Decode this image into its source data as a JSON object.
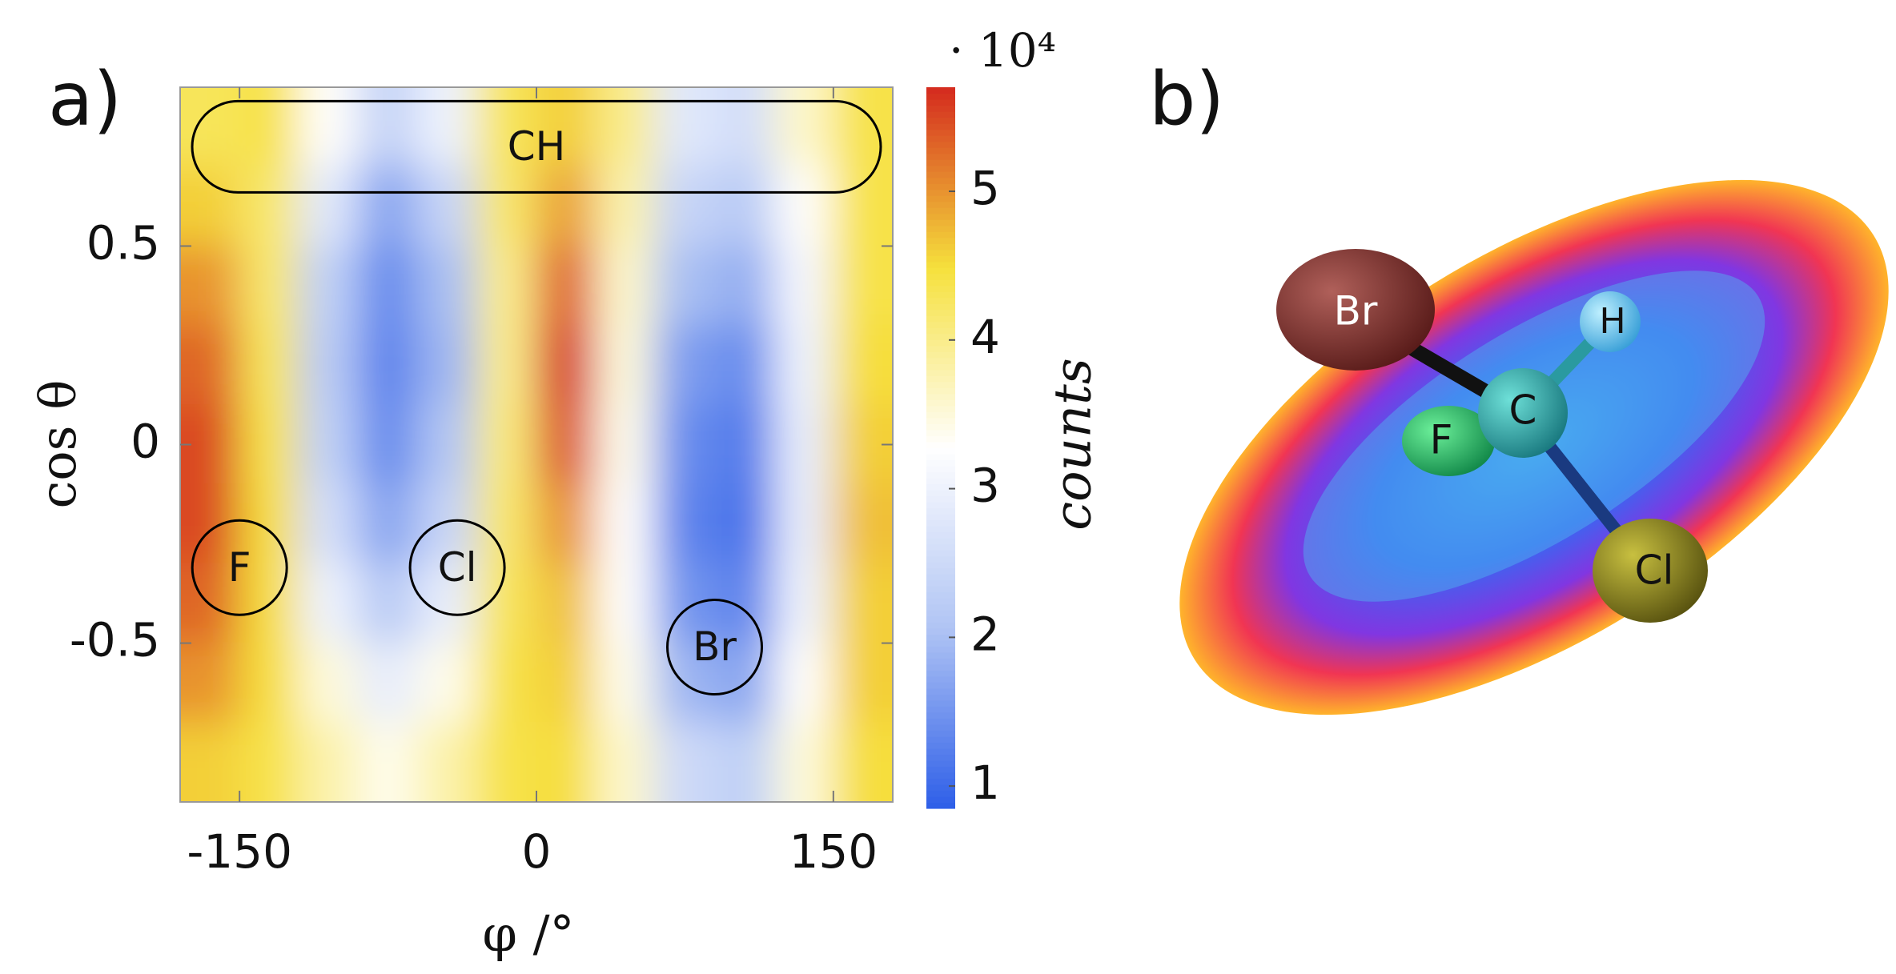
{
  "panel_labels": [
    "a)",
    "b)"
  ],
  "chart_data": {
    "type": "heatmap",
    "x_label": "φ /°",
    "y_label": "cos θ",
    "x": [
      -165,
      -135,
      -105,
      -75,
      -45,
      -15,
      15,
      45,
      75,
      105,
      135,
      165
    ],
    "y": [
      0.8,
      0.6,
      0.4,
      0.2,
      0,
      -0.2,
      -0.4,
      -0.6,
      -0.8
    ],
    "z": [
      [
        4.3,
        4.4,
        3.3,
        2.4,
        3.0,
        4.3,
        4.6,
        4.0,
        2.8,
        2.6,
        3.6,
        4.4
      ],
      [
        4.6,
        4.2,
        2.8,
        1.7,
        2.4,
        4.2,
        4.9,
        3.8,
        2.4,
        2.2,
        3.3,
        4.4
      ],
      [
        5.0,
        4.2,
        2.3,
        1.4,
        2.0,
        4.0,
        5.3,
        3.6,
        2.0,
        1.8,
        3.1,
        4.4
      ],
      [
        5.3,
        4.3,
        2.2,
        1.3,
        1.9,
        4.0,
        5.6,
        3.5,
        1.6,
        1.4,
        3.0,
        4.5
      ],
      [
        5.5,
        4.4,
        2.3,
        1.4,
        2.1,
        4.1,
        5.4,
        3.4,
        1.4,
        1.2,
        2.9,
        4.6
      ],
      [
        5.5,
        4.5,
        2.6,
        1.7,
        2.4,
        4.2,
        5.0,
        3.3,
        1.3,
        1.1,
        2.9,
        4.7
      ],
      [
        5.3,
        4.5,
        3.0,
        2.2,
        2.9,
        4.3,
        4.7,
        3.3,
        1.5,
        1.3,
        3.0,
        4.6
      ],
      [
        5.0,
        4.5,
        3.5,
        2.9,
        3.4,
        4.4,
        4.6,
        3.4,
        1.9,
        1.7,
        3.3,
        4.6
      ],
      [
        4.6,
        4.4,
        3.8,
        3.4,
        3.8,
        4.4,
        4.5,
        3.6,
        2.5,
        2.3,
        3.5,
        4.5
      ]
    ],
    "xlim": [
      -180,
      180
    ],
    "ylim": [
      -0.9,
      0.9
    ],
    "xticks": [
      -150,
      0,
      150
    ],
    "yticks": [
      -0.5,
      0,
      0.5
    ],
    "colormap": [
      "#2d5ee8",
      "#b0c4f4",
      "#ffffff",
      "#f6e03c",
      "#d42a1e"
    ],
    "colorbar": {
      "label": "counts",
      "multiplier": "· 10⁴",
      "lim": [
        0.85,
        5.7
      ],
      "ticks": [
        1,
        2,
        3,
        4,
        5
      ]
    },
    "annotations": [
      {
        "text": "F",
        "x": -150,
        "y": -0.31
      },
      {
        "text": "Cl",
        "x": -40,
        "y": -0.31
      },
      {
        "text": "Br",
        "x": 90,
        "y": -0.51
      },
      {
        "text": "CH",
        "x": 0,
        "y": 0.75
      }
    ]
  },
  "molecule": {
    "atoms": [
      "Br",
      "H",
      "C",
      "F",
      "Cl"
    ]
  }
}
